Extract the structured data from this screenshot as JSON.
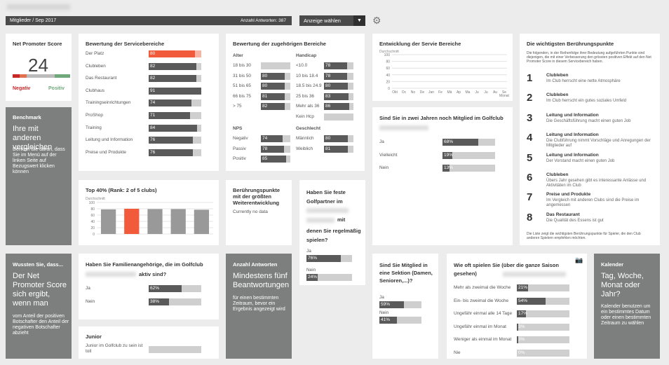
{
  "header": {
    "breadcrumb": "Mitglieder / Sep 2017",
    "responses": "Anzahl Antworten: 387",
    "select": "Anzeige wählen"
  },
  "nps": {
    "title": "Net Promoter Score",
    "value": "24",
    "neg": "Negativ",
    "pos": "Positiv",
    "colors": [
      "#c62828",
      "#e07050",
      "#bbb",
      "#6fa87a"
    ]
  },
  "benchmark": {
    "title": "Benchmark",
    "headline": "Ihre mit anderen vergleichen",
    "text": "Denken Sie daran, dass Sie im Menü auf der linken Seite auf Bezugswert klicken können"
  },
  "service": {
    "title": "Bewertung der Servicebereiche",
    "rows": [
      {
        "label": "Der Platz",
        "value": 80,
        "text": "80"
      },
      {
        "label": "Clubleben",
        "value": 82,
        "text": "82"
      },
      {
        "label": "Das Restaurant",
        "value": 82,
        "text": "82"
      },
      {
        "label": "Clubhaus",
        "value": 91,
        "text": "91"
      },
      {
        "label": "Trainingseinrichtungen",
        "value": 74,
        "text": "74"
      },
      {
        "label": "ProShop",
        "value": 71,
        "text": "71"
      },
      {
        "label": "Training",
        "value": 84,
        "text": "84"
      },
      {
        "label": "Leitung und Information",
        "value": 76,
        "text": "76"
      },
      {
        "label": "Preise und Produkte",
        "value": 76,
        "text": "76"
      }
    ]
  },
  "zugehoerig": {
    "title": "Bewertung der zugehörigen Bereiche",
    "alter_title": "Alter",
    "alter": [
      {
        "label": "18 bis 30",
        "value": 0,
        "text": ""
      },
      {
        "label": "31 bis 50",
        "value": 80,
        "text": "80"
      },
      {
        "label": "51 bis 65",
        "value": 80,
        "text": "80"
      },
      {
        "label": "66 bis 75",
        "value": 81,
        "text": "81"
      },
      {
        "label": "> 75",
        "value": 82,
        "text": "82"
      }
    ],
    "handicap_title": "Handicap",
    "handicap": [
      {
        "label": "<10.0",
        "value": 78,
        "text": "78"
      },
      {
        "label": "10 bis 18.4",
        "value": 78,
        "text": "78"
      },
      {
        "label": "18.5 bis 24.9",
        "value": 80,
        "text": "80"
      },
      {
        "label": "25 bis 36",
        "value": 83,
        "text": "83"
      },
      {
        "label": "Mehr als 36",
        "value": 86,
        "text": "86"
      },
      {
        "label": "Kein Hcp",
        "value": 0,
        "text": ""
      }
    ],
    "nps_title": "NPS",
    "nps": [
      {
        "label": "Negativ",
        "value": 74,
        "text": "74"
      },
      {
        "label": "Passiv",
        "value": 78,
        "text": "78"
      },
      {
        "label": "Positiv",
        "value": 85,
        "text": "85"
      }
    ],
    "geschlecht_title": "Geschlecht",
    "geschlecht": [
      {
        "label": "Männlich",
        "value": 80,
        "text": "80"
      },
      {
        "label": "Weiblich",
        "value": 81,
        "text": "81"
      }
    ]
  },
  "entwicklung": {
    "title": "Entwicklung der Servie Bereiche",
    "ylabel": "Durchschnitt",
    "yticks": [
      "100",
      "80",
      "60",
      "40",
      "20",
      "0"
    ],
    "xticks": [
      "Okt",
      "Oc",
      "No",
      "De",
      "Jan",
      "Fe",
      "Mä",
      "Ap",
      "Ma",
      "Ju",
      "Ju",
      "Au",
      "Se"
    ],
    "xend": "Monat"
  },
  "beruehrung": {
    "title": "Die wichtigsten Berührungspunkte",
    "intro": "Die folgenden, in der Reihenfolge ihrer Bedeutung aufgeführten Punkte sind diejenigen, die mit einer Verbesserung den grössten positiven Effekt auf den Net Promoter Score in diesem Servicebereich haben.",
    "items": [
      {
        "n": "1",
        "t": "Clubleben",
        "d": "Im Club herrscht eine nette Atmosphäre"
      },
      {
        "n": "2",
        "t": "Clubleben",
        "d": "Im Club herrscht ein gutes soziales Umfeld"
      },
      {
        "n": "3",
        "t": "Leitung und Information",
        "d": "Die Geschäftsführung macht einen guten Job"
      },
      {
        "n": "4",
        "t": "Leitung und Information",
        "d": "Die Clubführung nimmt Vorschläge und Anregungen der Mitglieder auf"
      },
      {
        "n": "5",
        "t": "Leitung und Information",
        "d": "Der Vorstand macht einen guten Job"
      },
      {
        "n": "6",
        "t": "Clubleben",
        "d": "Übers Jahr gesehen gibt es interessante Anlässe und Aktivitäten im Club"
      },
      {
        "n": "7",
        "t": "Preise und Produkte",
        "d": "Im Vergleich mit anderen Clubs sind die Preise im angemessen"
      },
      {
        "n": "8",
        "t": "Das Restaurant",
        "d": "Die Qualität des Essens ist gut"
      }
    ],
    "footer": "Die Liste zeigt die wichtigsten Berührungspunkte für Spieler, die den Club anderen Spielern empfehlen möchten."
  },
  "zweijahre": {
    "title": "Sind Sie in zwei Jahren noch Mitglied im Golfclub",
    "rows": [
      {
        "label": "Ja",
        "value": 68,
        "text": "68%"
      },
      {
        "label": "Vielleicht",
        "value": 19,
        "text": "19%"
      },
      {
        "label": "Nein",
        "value": 13,
        "text": "13%"
      }
    ]
  },
  "top40": {
    "title": "Top 40% (Rank: 2 of 5 clubs)",
    "ylabel": "Durchschnitt",
    "yticks": [
      "100",
      "80",
      "60",
      "40",
      "20",
      "0"
    ],
    "values": [
      78,
      80,
      79,
      79,
      77
    ],
    "highlight": 1,
    "colors": {
      "bar": "#999999",
      "highlight": "#f15a3a"
    }
  },
  "weiter": {
    "title": "Berührungspunkte mit der größten Weiterentwicklung",
    "text": "Currently no data"
  },
  "golfpartner": {
    "title_a": "Haben Sie feste Golfpartner im",
    "title_b": "mit",
    "title_c": "denen Sie regelmäßig spielen?",
    "rows": [
      {
        "label": "Ja",
        "value": 76,
        "text": "76%"
      },
      {
        "label": "Nein",
        "value": 24,
        "text": "24%"
      }
    ]
  },
  "wussten": {
    "title": "Wussten Sie, dass...",
    "headline": "Der Net Promoter Score sich ergibt, wenn man",
    "text": "vom Anteil der positiven Botschafter den Anteil der negativen Botschafter abzieht"
  },
  "familie": {
    "title": "Haben Sie Familienangehörige, die im Golfclub",
    "title_b": "aktiv sind?",
    "rows": [
      {
        "label": "Ja",
        "value": 62,
        "text": "62%"
      },
      {
        "label": "Nein",
        "value": 38,
        "text": "38%"
      }
    ]
  },
  "junior": {
    "title": "Junior",
    "text": "Junior im Golfclub zu sein ist toll"
  },
  "antworten": {
    "title": "Anzahl Antworten",
    "headline": "Mindestens fünf Beantwortungen",
    "text": "für einen bestimmten Zeitraum, bevor ein Ergebnis angezeigt wird"
  },
  "sektion": {
    "title": "Sind Sie Mitglied in eine Sektion (Damen, Senioren,...)?",
    "rows": [
      {
        "label": "Ja",
        "value": 59,
        "text": "59%"
      },
      {
        "label": "Nein",
        "value": 41,
        "text": "41%"
      }
    ]
  },
  "oft": {
    "title": "Wie oft spielen Sie (über die ganze Saison gesehen)",
    "rows": [
      {
        "label": "Mehr als zweimal die Woche",
        "value": 21,
        "text": "21%"
      },
      {
        "label": "Ein- bis zweimal die Woche",
        "value": 54,
        "text": "54%"
      },
      {
        "label": "Ungefähr einmal alle 14 Tage",
        "value": 17,
        "text": "17%"
      },
      {
        "label": "Ungefähr einmal im Monat",
        "value": 3,
        "text": "3%"
      },
      {
        "label": "Weniger als einmal im Monat",
        "value": 3,
        "text": "3%"
      },
      {
        "label": "Nie",
        "value": 0,
        "text": "0%"
      }
    ]
  },
  "kalender": {
    "title": "Kalender",
    "headline": "Tag, Woche, Monat oder Jahr?",
    "text": "Kalender benutzen um ein bestimmtes Datum oder einen bestimmten Zeitraum zu wählen"
  }
}
